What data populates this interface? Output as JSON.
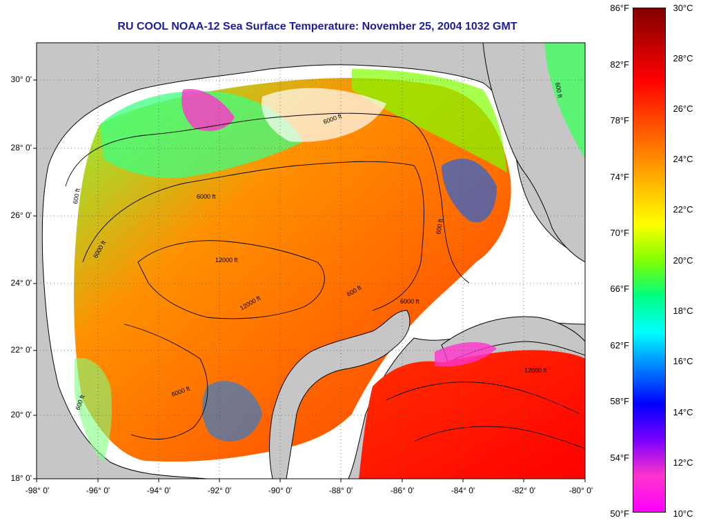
{
  "title": "RU COOL  NOAA-12  Sea Surface Temperature:  November 25, 2004 1032 GMT",
  "map": {
    "lat_labels": [
      "30° 0'",
      "28° 0'",
      "26° 0'",
      "24° 0'",
      "22° 0'",
      "20° 0'",
      "18° 0'"
    ],
    "lon_labels": [
      "-98° 0'",
      "-96° 0'",
      "-94° 0'",
      "-92° 0'",
      "-90° 0'",
      "-88° 0'",
      "-86° 0'",
      "-84° 0'",
      "-82° 0'",
      "-80° 0'"
    ],
    "contour_labels": [
      "600 ft",
      "6000 ft",
      "12000 ft",
      "6000 ft",
      "600 ft",
      "12000 ft",
      "6000 ft",
      "600 ft",
      "6000 ft",
      "12000 ft",
      "600 ft",
      "600 ft",
      "6000 ft"
    ],
    "colors": {
      "land": "#c6c6c6",
      "no_data": "#ffffff",
      "grid": "#555555"
    }
  },
  "colorbar": {
    "fahrenheit_labels": [
      "86°F",
      "82°F",
      "78°F",
      "74°F",
      "70°F",
      "66°F",
      "62°F",
      "58°F",
      "54°F",
      "50°F"
    ],
    "celsius_labels": [
      "30°C",
      "28°C",
      "26°C",
      "24°C",
      "22°C",
      "20°C",
      "18°C",
      "16°C",
      "14°C",
      "12°C",
      "10°C"
    ],
    "range_celsius": [
      10,
      30
    ],
    "colors": [
      "#ff00ff",
      "#ff33cc",
      "#7a00ff",
      "#0000ff",
      "#0080ff",
      "#00ffff",
      "#00ff80",
      "#80ff00",
      "#ffff00",
      "#ffbf00",
      "#ff8000",
      "#ff4000",
      "#ff0000",
      "#c00000",
      "#800000"
    ]
  }
}
